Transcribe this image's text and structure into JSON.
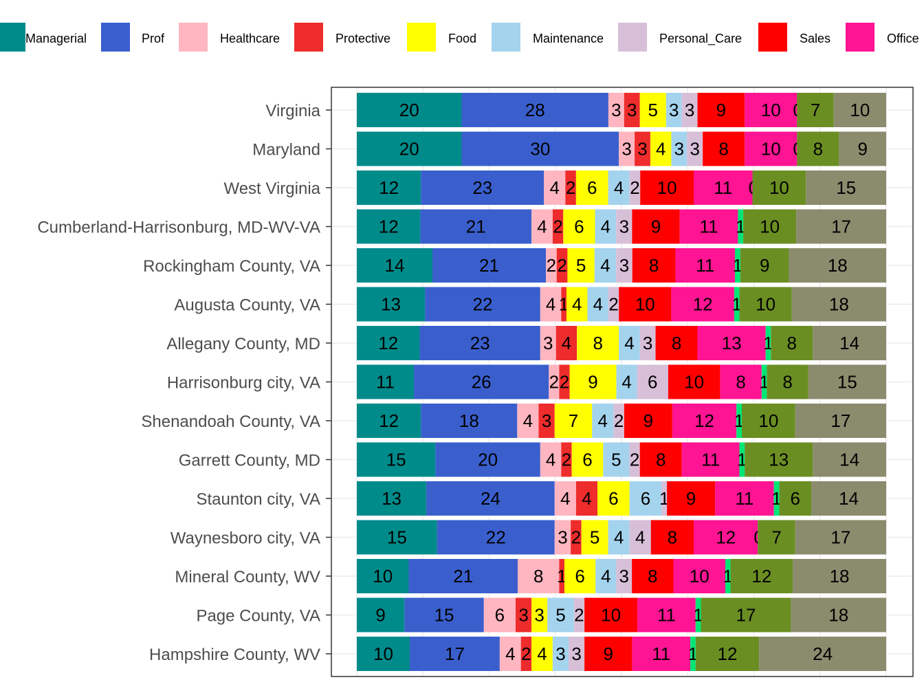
{
  "chart_data": {
    "type": "bar",
    "orientation": "horizontal",
    "stacked": true,
    "normalized_percent": true,
    "legend_position": "top",
    "grid": true,
    "categories": [
      "Virginia",
      "Maryland",
      "West Virginia",
      "Cumberland-Harrisonburg, MD-WV-VA",
      "Rockingham County, VA",
      "Augusta County, VA",
      "Allegany County, MD",
      "Harrisonburg city, VA",
      "Shenandoah County, VA",
      "Garrett County, MD",
      "Staunton city, VA",
      "Waynesboro city, VA",
      "Mineral County, WV",
      "Page County, VA",
      "Hampshire County, WV"
    ],
    "series": [
      {
        "name": "Managerial",
        "color": "#008B8B",
        "values": [
          20,
          20,
          12,
          12,
          14,
          13,
          12,
          11,
          12,
          15,
          13,
          15,
          10,
          9,
          10
        ]
      },
      {
        "name": "Prof",
        "color": "#3A5FCD",
        "values": [
          28,
          30,
          23,
          21,
          21,
          22,
          23,
          26,
          18,
          20,
          24,
          22,
          21,
          15,
          17
        ]
      },
      {
        "name": "Healthcare",
        "color": "#FFB6C1",
        "values": [
          3,
          3,
          4,
          4,
          2,
          4,
          3,
          2,
          4,
          4,
          4,
          3,
          8,
          6,
          4
        ]
      },
      {
        "name": "Protective",
        "color": "#EE2C2C",
        "values": [
          3,
          3,
          2,
          2,
          2,
          1,
          4,
          2,
          3,
          2,
          4,
          2,
          1,
          3,
          2
        ]
      },
      {
        "name": "Food",
        "color": "#FFFF00",
        "values": [
          5,
          4,
          6,
          6,
          5,
          4,
          8,
          9,
          7,
          6,
          6,
          5,
          6,
          3,
          4
        ]
      },
      {
        "name": "Maintenance",
        "color": "#A4D3EE",
        "values": [
          3,
          3,
          4,
          4,
          4,
          4,
          4,
          4,
          4,
          5,
          6,
          4,
          4,
          5,
          3
        ]
      },
      {
        "name": "Personal_Care",
        "color": "#D8BFD8",
        "values": [
          3,
          3,
          2,
          3,
          3,
          2,
          3,
          6,
          2,
          2,
          1,
          4,
          3,
          2,
          3
        ]
      },
      {
        "name": "Sales",
        "color": "#FF0000",
        "values": [
          9,
          8,
          10,
          9,
          8,
          10,
          8,
          10,
          9,
          8,
          9,
          8,
          8,
          10,
          9
        ]
      },
      {
        "name": "Office",
        "color": "#FF1493",
        "values": [
          10,
          10,
          11,
          11,
          11,
          12,
          13,
          8,
          12,
          11,
          11,
          12,
          10,
          11,
          11
        ]
      },
      {
        "name": "",
        "color": "#00E676",
        "values": [
          0,
          0,
          0,
          1,
          1,
          1,
          1,
          1,
          1,
          1,
          1,
          0,
          1,
          1,
          1
        ]
      },
      {
        "name": "",
        "color": "#6B8E23",
        "values": [
          7,
          8,
          10,
          10,
          9,
          10,
          8,
          8,
          10,
          13,
          6,
          7,
          12,
          17,
          12
        ]
      },
      {
        "name": "",
        "color": "#8B8B6E",
        "values": [
          10,
          9,
          15,
          17,
          18,
          18,
          14,
          15,
          17,
          14,
          14,
          17,
          18,
          18,
          24
        ]
      }
    ],
    "xlim": [
      0,
      100
    ]
  }
}
